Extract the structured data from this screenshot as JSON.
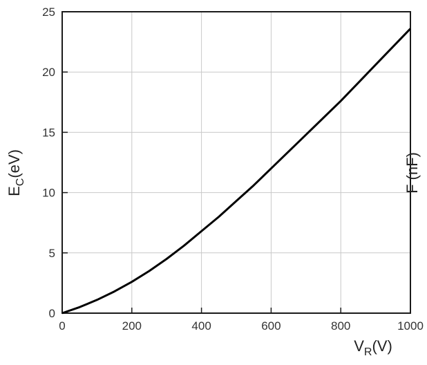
{
  "chart_data": {
    "type": "line",
    "title": "",
    "xlabel": {
      "main": "V",
      "sub": "R",
      "unit": "(V)"
    },
    "ylabel_left": {
      "main": "E",
      "sub": "C",
      "unit": "(eV)"
    },
    "ylabel_right": {
      "main": "F",
      "unit": "(nF)"
    },
    "xlim": [
      0,
      1000
    ],
    "ylim": [
      0,
      25
    ],
    "y_ticks": [
      0,
      5,
      10,
      15,
      20,
      25
    ],
    "y_tick_labels": [
      "0",
      "5",
      "10",
      "15",
      "20",
      "25"
    ],
    "x_tick_labels": [
      "0",
      "200",
      "400",
      "600",
      "800",
      "1000"
    ],
    "grid": true,
    "series": [
      {
        "color": "#000000",
        "x": [
          0,
          50,
          100,
          150,
          200,
          250,
          300,
          350,
          400,
          450,
          500,
          550,
          600,
          650,
          700,
          750,
          800,
          850,
          900,
          950,
          1000
        ],
        "y": [
          0,
          0.5,
          1.1,
          1.8,
          2.6,
          3.5,
          4.5,
          5.6,
          6.8,
          8.0,
          9.3,
          10.6,
          12.0,
          13.4,
          14.8,
          16.2,
          17.6,
          19.1,
          20.6,
          22.1,
          23.6
        ]
      }
    ]
  }
}
